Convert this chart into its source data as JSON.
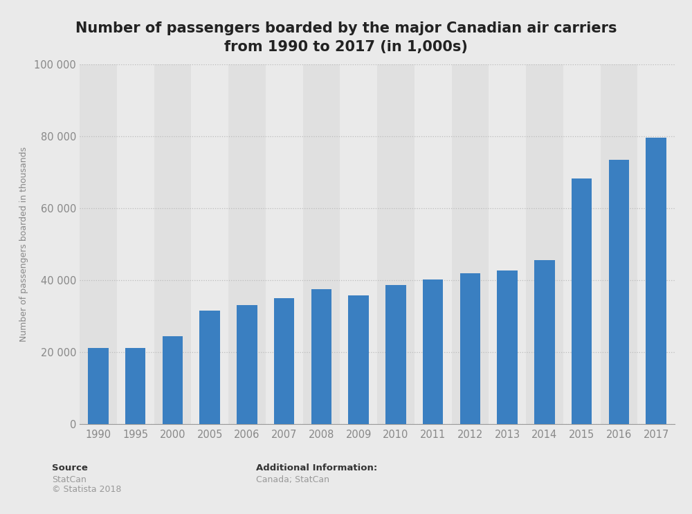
{
  "title_line1": "Number of passengers boarded by the major Canadian air carriers",
  "title_line2": "from 1990 to 2017 (in 1,000s)",
  "years": [
    "1990",
    "1995",
    "2000",
    "2005",
    "2006",
    "2007",
    "2008",
    "2009",
    "2010",
    "2011",
    "2012",
    "2013",
    "2014",
    "2015",
    "2016",
    "2017"
  ],
  "values": [
    21100,
    21100,
    24500,
    31500,
    33000,
    35000,
    37500,
    35700,
    38700,
    40100,
    41900,
    42700,
    45500,
    68200,
    73500,
    79500
  ],
  "bar_color": "#3a7fc1",
  "background_color": "#eaeaea",
  "plot_bg_color": "#eaeaea",
  "col_even_color": "#e0e0e0",
  "col_odd_color": "#eaeaea",
  "ylabel": "Number of passengers boarded in thousands",
  "ylim": [
    0,
    100000
  ],
  "yticks": [
    0,
    20000,
    40000,
    60000,
    80000,
    100000
  ],
  "ytick_labels": [
    "0",
    "20 000",
    "40 000",
    "60 000",
    "80 000",
    "100 000"
  ],
  "grid_color": "#bbbbbb",
  "title_fontsize": 15,
  "ylabel_fontsize": 9,
  "tick_fontsize": 10.5,
  "source_label": "Source",
  "additional_label": "Additional Information:",
  "additional_text": "Canada; StatCan"
}
